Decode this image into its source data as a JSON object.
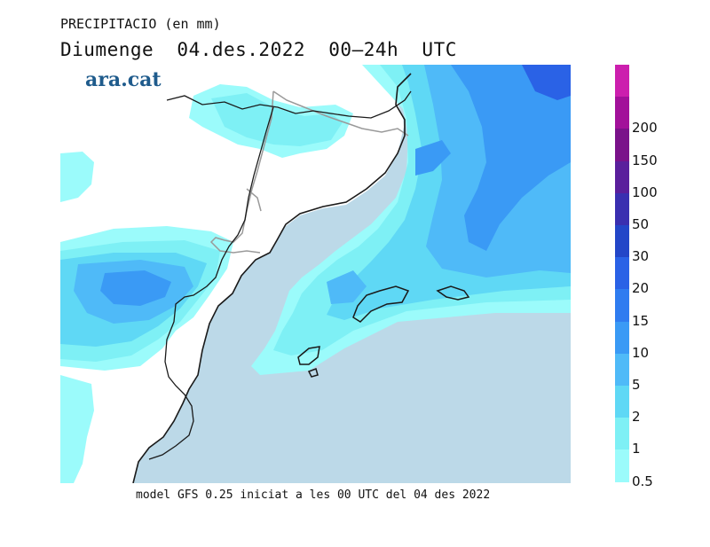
{
  "title": {
    "line1": "PRECIPITACIO (en mm)",
    "line2": "Diumenge  04.des.2022  00—24h  UTC"
  },
  "brand": "ara.cat",
  "footer": "model GFS 0.25 iniciat a les 00 UTC del 04 des 2022",
  "legend": {
    "levels": [
      {
        "label": "0.5",
        "color": "#9bfbfb"
      },
      {
        "label": "1",
        "color": "#7ef0f5"
      },
      {
        "label": "2",
        "color": "#5fd8f5"
      },
      {
        "label": "5",
        "color": "#4fbaf8"
      },
      {
        "label": "10",
        "color": "#3a9af5"
      },
      {
        "label": "15",
        "color": "#2f7cf0"
      },
      {
        "label": "20",
        "color": "#2a62e6"
      },
      {
        "label": "30",
        "color": "#2346c8"
      },
      {
        "label": "50",
        "color": "#3a2fb0"
      },
      {
        "label": "100",
        "color": "#5a1f9c"
      },
      {
        "label": "150",
        "color": "#7a128a"
      },
      {
        "label": "200",
        "color": "#a2119a"
      },
      {
        "label": "",
        "color": "#cc1fae"
      }
    ]
  },
  "map": {
    "sea_color": "#bcd9e8",
    "land_color": "#ffffff",
    "coast_color": "#1a1a1a",
    "border_color": "#9a9a9a"
  }
}
